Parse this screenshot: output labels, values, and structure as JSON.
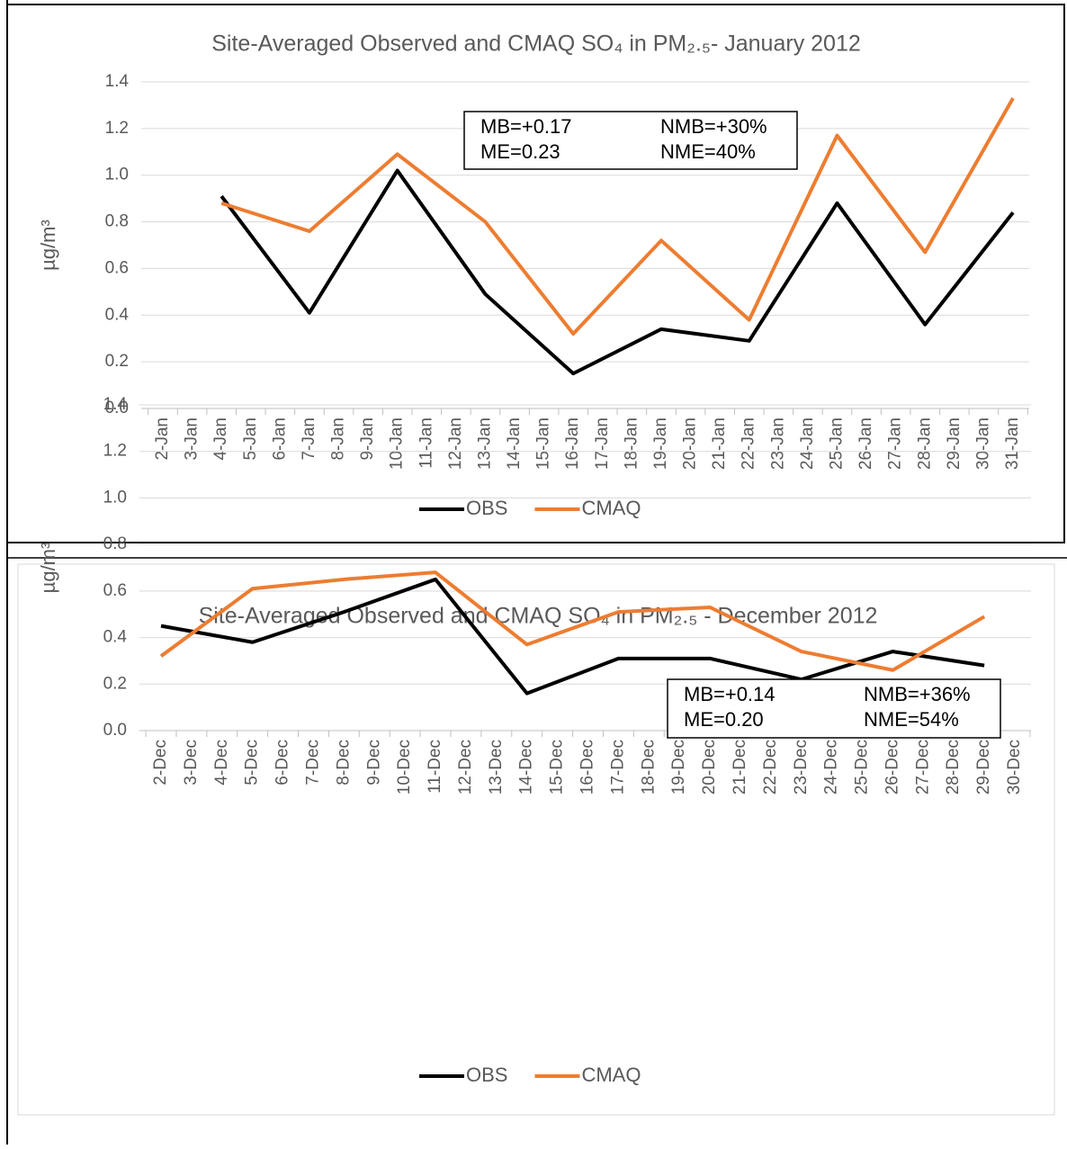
{
  "chart_data": [
    {
      "type": "line",
      "title": "Site-Averaged Observed and CMAQ SO₄ in PM₂.₅- January 2012",
      "y_label": "µg/m³",
      "categories": [
        "2-Jan",
        "3-Jan",
        "4-Jan",
        "5-Jan",
        "6-Jan",
        "7-Jan",
        "8-Jan",
        "9-Jan",
        "10-Jan",
        "11-Jan",
        "12-Jan",
        "13-Jan",
        "14-Jan",
        "15-Jan",
        "16-Jan",
        "17-Jan",
        "18-Jan",
        "19-Jan",
        "20-Jan",
        "21-Jan",
        "22-Jan",
        "23-Jan",
        "24-Jan",
        "25-Jan",
        "26-Jan",
        "27-Jan",
        "28-Jan",
        "29-Jan",
        "30-Jan",
        "31-Jan"
      ],
      "series": [
        {
          "name": "OBS",
          "color": "#000000",
          "x": [
            "4-Jan",
            "7-Jan",
            "10-Jan",
            "13-Jan",
            "16-Jan",
            "19-Jan",
            "22-Jan",
            "25-Jan",
            "28-Jan",
            "31-Jan"
          ],
          "values": [
            0.91,
            0.41,
            1.02,
            0.49,
            0.15,
            0.34,
            0.29,
            0.88,
            0.36,
            0.84
          ]
        },
        {
          "name": "CMAQ",
          "color": "#ed7d31",
          "x": [
            "4-Jan",
            "7-Jan",
            "10-Jan",
            "13-Jan",
            "16-Jan",
            "19-Jan",
            "22-Jan",
            "25-Jan",
            "28-Jan",
            "31-Jan"
          ],
          "values": [
            0.88,
            0.76,
            1.09,
            0.8,
            0.32,
            0.72,
            0.38,
            1.17,
            0.67,
            1.33
          ]
        }
      ],
      "ylim": [
        0,
        1.4
      ],
      "yticks": [
        {
          "value": 0,
          "label": "0.0"
        },
        0.2,
        0.4,
        0.6,
        0.8,
        {
          "value": 1,
          "label": "1.0"
        },
        1.2,
        1.4
      ],
      "grid": true,
      "legend": "bottom",
      "annotations": [
        "MB=+0.17",
        "NMB=+30%",
        "ME=0.23",
        "NME=40%"
      ]
    },
    {
      "type": "line",
      "title": "Site-Averaged Observed and CMAQ SO₄ in PM₂.₅ - December 2012",
      "y_label": "µg/m³",
      "categories": [
        "2-Dec",
        "3-Dec",
        "4-Dec",
        "5-Dec",
        "6-Dec",
        "7-Dec",
        "8-Dec",
        "9-Dec",
        "10-Dec",
        "11-Dec",
        "12-Dec",
        "13-Dec",
        "14-Dec",
        "15-Dec",
        "16-Dec",
        "17-Dec",
        "18-Dec",
        "19-Dec",
        "20-Dec",
        "21-Dec",
        "22-Dec",
        "23-Dec",
        "24-Dec",
        "25-Dec",
        "26-Dec",
        "27-Dec",
        "28-Dec",
        "29-Dec",
        "30-Dec"
      ],
      "series": [
        {
          "name": "OBS",
          "color": "#000000",
          "x": [
            "2-Dec",
            "5-Dec",
            "8-Dec",
            "11-Dec",
            "14-Dec",
            "17-Dec",
            "20-Dec",
            "23-Dec",
            "26-Dec",
            "29-Dec"
          ],
          "values": [
            0.45,
            0.38,
            0.51,
            0.65,
            0.16,
            0.31,
            0.31,
            0.22,
            0.34,
            0.28
          ]
        },
        {
          "name": "CMAQ",
          "color": "#ed7d31",
          "x": [
            "2-Dec",
            "5-Dec",
            "8-Dec",
            "11-Dec",
            "14-Dec",
            "17-Dec",
            "20-Dec",
            "23-Dec",
            "26-Dec",
            "29-Dec"
          ],
          "values": [
            0.32,
            0.61,
            0.65,
            0.68,
            0.37,
            0.51,
            0.53,
            0.34,
            0.26,
            0.49
          ]
        }
      ],
      "ylim": [
        0,
        1.4
      ],
      "yticks": [
        {
          "value": 0,
          "label": "0.0"
        },
        0.2,
        0.4,
        0.6,
        0.8,
        {
          "value": 1,
          "label": "1.0"
        },
        1.2,
        1.4
      ],
      "grid": true,
      "legend": "bottom",
      "annotations": [
        "MB=+0.14",
        "NMB=+36%",
        "ME=0.20",
        "NME=54%"
      ]
    }
  ]
}
